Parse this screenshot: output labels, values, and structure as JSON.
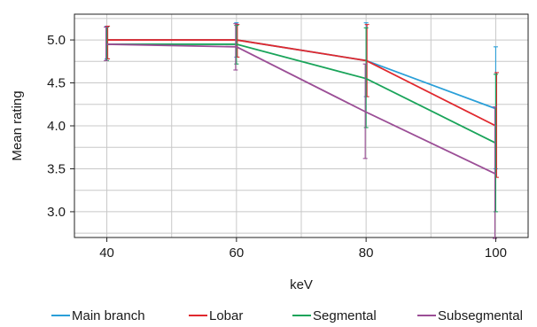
{
  "chart_data": {
    "type": "line",
    "title": "",
    "xlabel": "keV",
    "ylabel": "Mean rating",
    "x": [
      40,
      60,
      80,
      100
    ],
    "xlim": [
      35,
      105
    ],
    "ylim": [
      2.7,
      5.3
    ],
    "x_ticks": [
      40,
      60,
      80,
      100
    ],
    "y_ticks": [
      3.0,
      3.5,
      4.0,
      4.5,
      5.0
    ],
    "y_tick_labels": [
      "3.0",
      "3.5",
      "4.0",
      "4.5",
      "5.0"
    ],
    "x_minor_gridlines": [
      50,
      70,
      90
    ],
    "y_minor_gridlines": [
      2.75,
      3.25,
      3.75,
      4.25,
      4.75,
      5.25
    ],
    "grid": true,
    "legend_placement": "bottom",
    "series": [
      {
        "name": "Main branch",
        "color": "#2a9fd8",
        "values": [
          5.0,
          5.0,
          4.76,
          4.2
        ],
        "error_low": [
          4.78,
          4.8,
          4.34,
          3.5
        ],
        "error_high": [
          5.16,
          5.2,
          5.2,
          4.92
        ]
      },
      {
        "name": "Lobar",
        "color": "#e0282e",
        "values": [
          5.0,
          5.0,
          4.76,
          4.0
        ],
        "error_low": [
          4.78,
          4.8,
          4.34,
          3.4
        ],
        "error_high": [
          5.16,
          5.18,
          5.18,
          4.62
        ]
      },
      {
        "name": "Segmental",
        "color": "#1aa45a",
        "values": [
          4.95,
          4.95,
          4.55,
          3.8
        ],
        "error_low": [
          4.76,
          4.72,
          3.98,
          3.0
        ],
        "error_high": [
          5.15,
          5.17,
          5.14,
          4.6
        ]
      },
      {
        "name": "Subsegmental",
        "color": "#9b4e96",
        "values": [
          4.95,
          4.92,
          4.16,
          3.44
        ],
        "error_low": [
          4.76,
          4.65,
          3.62,
          2.69
        ],
        "error_high": [
          5.15,
          5.19,
          4.72,
          4.22
        ]
      }
    ]
  }
}
